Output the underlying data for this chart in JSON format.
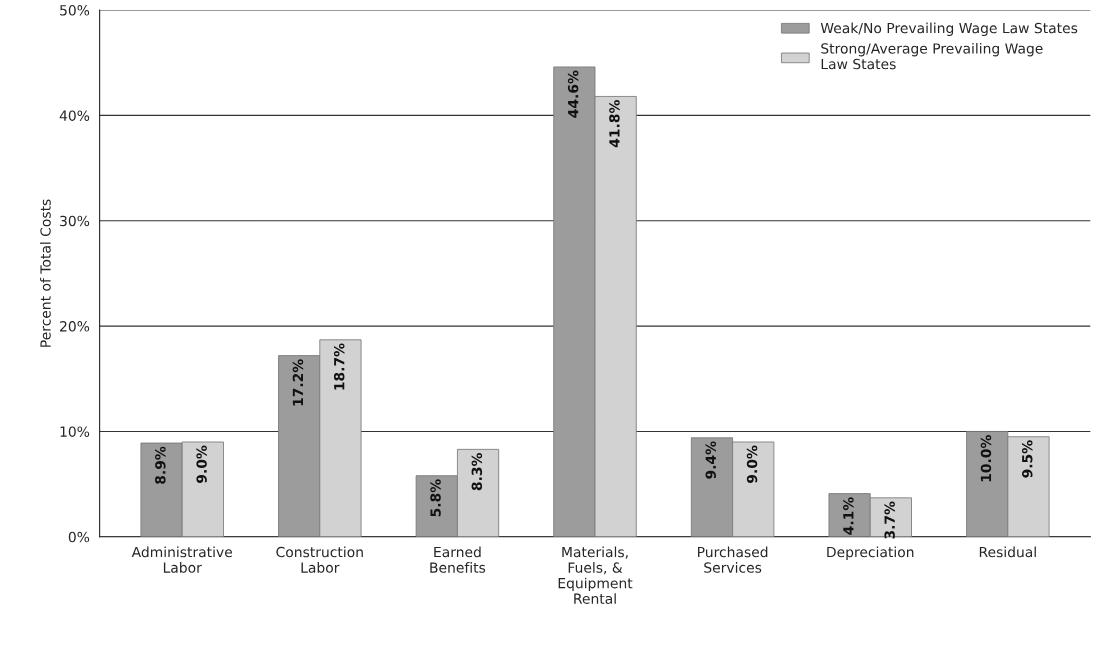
{
  "chart_data": {
    "type": "bar",
    "ylabel": "Percent of Total Costs",
    "categories": [
      "Administrative\nLabor",
      "Construction\nLabor",
      "Earned\nBenefits",
      "Materials,\nFuels, &\nEquipment\nRental",
      "Purchased\nServices",
      "Depreciation",
      "Residual"
    ],
    "series": [
      {
        "name": "Weak/No Prevailing Wage Law States",
        "color": "#9c9c9c",
        "values": [
          8.9,
          17.2,
          5.8,
          44.6,
          9.4,
          4.1,
          10.0
        ],
        "value_labels": [
          "8.9%",
          "17.2%",
          "5.8%",
          "44.6%",
          "9.4%",
          "4.1%",
          "10.0%"
        ]
      },
      {
        "name": "Strong/Average Prevailing Wage\nLaw States",
        "color": "#d2d2d2",
        "values": [
          9.0,
          18.7,
          8.3,
          41.8,
          9.0,
          3.7,
          9.5
        ],
        "value_labels": [
          "9.0%",
          "18.7%",
          "8.3%",
          "41.8%",
          "9.0%",
          "3.7%",
          "9.5%"
        ]
      }
    ],
    "ylim": [
      0,
      50
    ],
    "yticks": [
      {
        "value": 0,
        "label": "0%"
      },
      {
        "value": 10,
        "label": "10%"
      },
      {
        "value": 20,
        "label": "20%"
      },
      {
        "value": 30,
        "label": "30%"
      },
      {
        "value": 40,
        "label": "40%"
      },
      {
        "value": 50,
        "label": "50%"
      }
    ],
    "grid": "y",
    "legend": "top right"
  }
}
